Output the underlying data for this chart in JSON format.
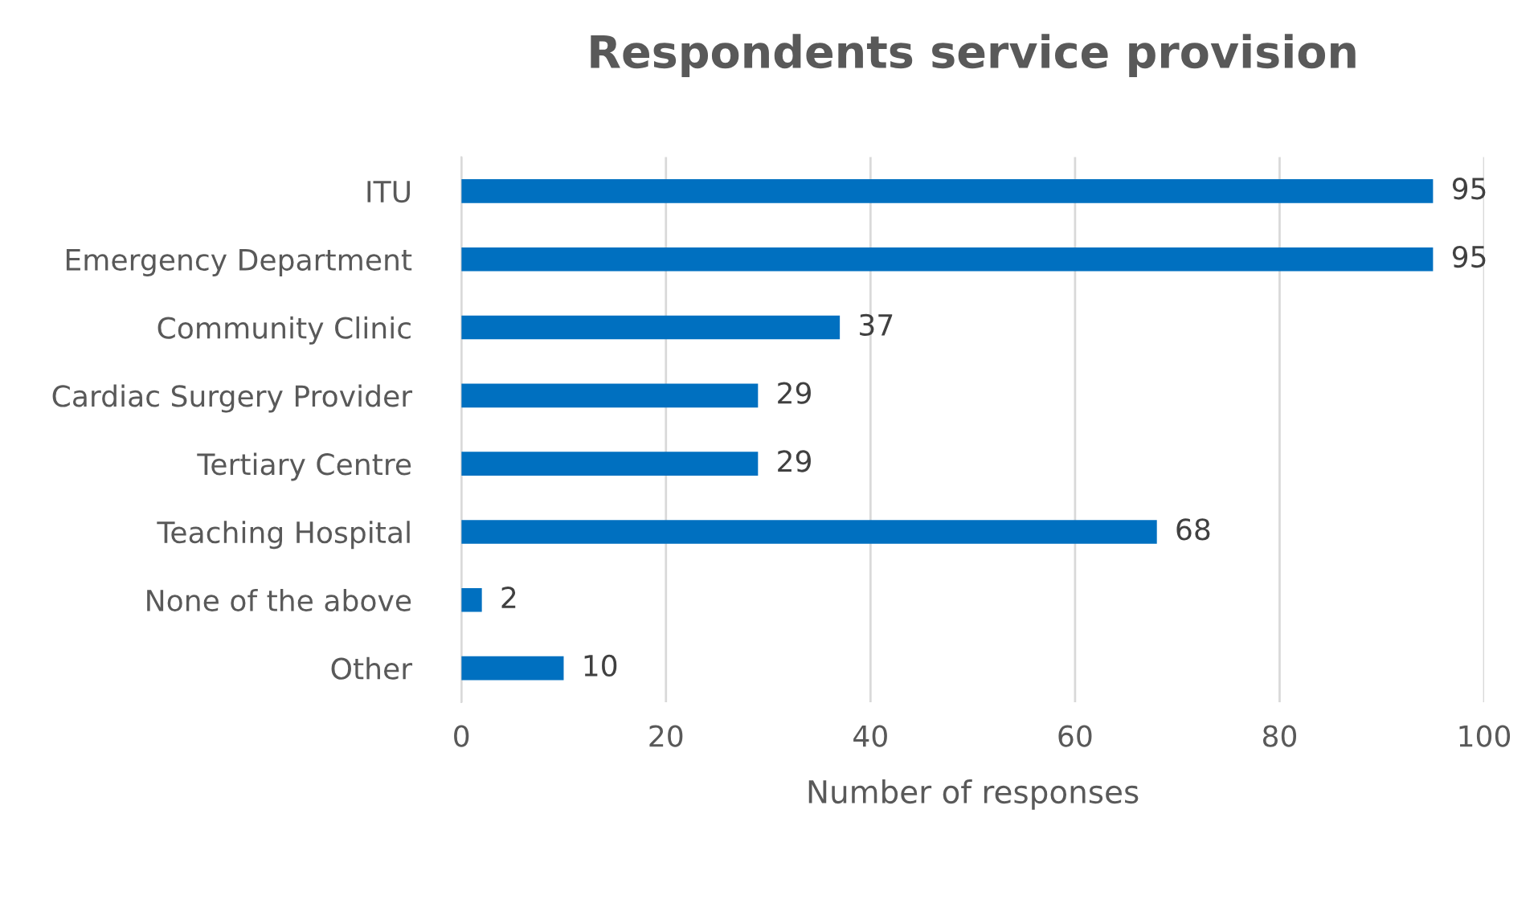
{
  "chart_data": {
    "type": "bar",
    "orientation": "horizontal",
    "title": "Respondents service provision",
    "xlabel": "Number of responses",
    "categories": [
      "ITU",
      "Emergency Department",
      "Community Clinic",
      "Cardiac Surgery Provider",
      "Tertiary Centre",
      "Teaching Hospital",
      "None of the above",
      "Other"
    ],
    "values": [
      95,
      95,
      37,
      29,
      29,
      68,
      2,
      10
    ],
    "color": "#0070c0",
    "xlim": [
      0,
      100
    ],
    "xticks": [
      0,
      20,
      40,
      60,
      80,
      100
    ],
    "grid": "x",
    "data_labels": true,
    "legend": false
  }
}
